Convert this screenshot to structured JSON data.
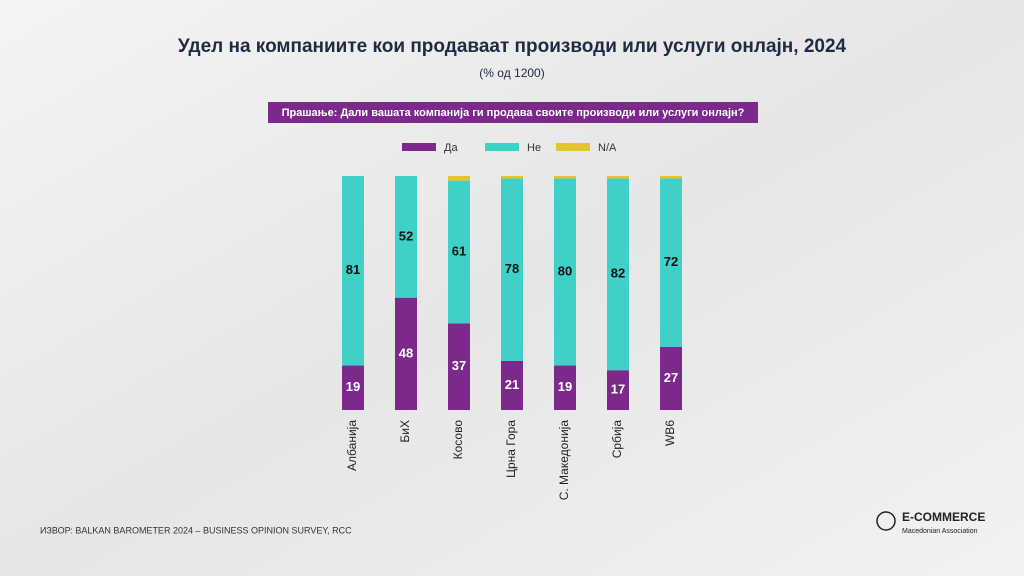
{
  "chart_data": {
    "type": "stacked-bar",
    "title": "Удел на компаниите кои продаваат производи или услуги онлајн, 2024",
    "subtitle": "(% од 1200)",
    "question": "Прашање: Дали вашата компанија ги продава своите производи или услуги онлајн?",
    "categories": [
      "Албанија",
      "БиХ",
      "Косово",
      "Црна Гора",
      "С. Македонија",
      "Србија",
      "WB6"
    ],
    "series": [
      {
        "name": "Да",
        "color": "#7b2a8c",
        "values": [
          19,
          48,
          37,
          21,
          19,
          17,
          27
        ]
      },
      {
        "name": "Не",
        "color": "#3fd1c8",
        "values": [
          81,
          52,
          61,
          78,
          80,
          82,
          72
        ]
      },
      {
        "name": "N/A",
        "color": "#e2c431",
        "values": [
          0,
          0,
          2,
          1,
          1,
          1,
          1
        ]
      }
    ],
    "ylim": [
      0,
      100
    ],
    "source": "ИЗВОР: BALKAN BAROMETER 2024 – BUSINESS OPINION SURVEY, RCC",
    "logo": {
      "name": "E-COMMERCE",
      "tagline": "Macedonian Association"
    }
  }
}
